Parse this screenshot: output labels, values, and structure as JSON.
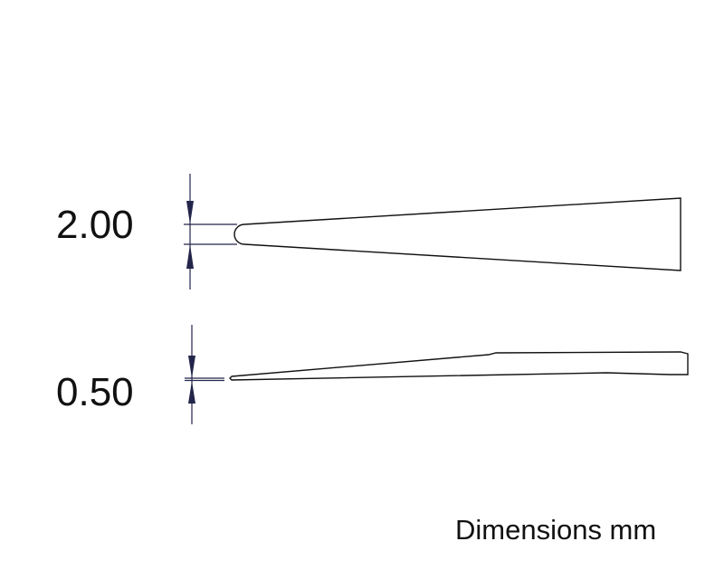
{
  "dimensions": {
    "width_label": "2.00",
    "thickness_label": "0.50",
    "units_caption": "Dimensions mm"
  },
  "colors": {
    "outline": "#111111",
    "dimension_arrow": "#23254a"
  }
}
